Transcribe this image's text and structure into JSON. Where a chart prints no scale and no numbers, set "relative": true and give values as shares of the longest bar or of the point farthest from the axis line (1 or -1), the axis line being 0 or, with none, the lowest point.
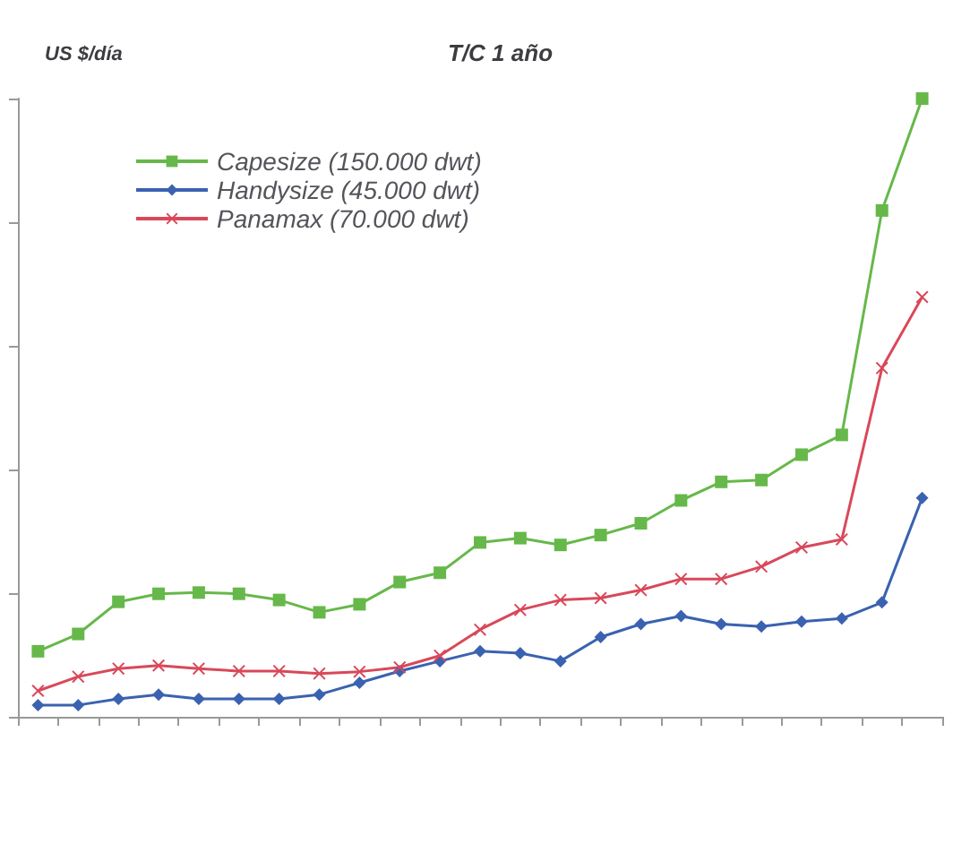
{
  "chart_data": {
    "type": "line",
    "title": "T/C 1 año",
    "ylabel": "US $/día",
    "relative": true,
    "grid": false,
    "legend": "top left",
    "categories": [
      null,
      null,
      null,
      null,
      null,
      null,
      null,
      null,
      null,
      null,
      null,
      null,
      null,
      null,
      null,
      null,
      null,
      null,
      null,
      null,
      null,
      null,
      null
    ],
    "series": [
      {
        "name": "Capesize (150.000 dwt)",
        "color": "#66b84a",
        "marker": "square",
        "values": [
          0.106,
          0.134,
          0.186,
          0.199,
          0.201,
          0.199,
          0.189,
          0.169,
          0.182,
          0.218,
          0.233,
          0.282,
          0.289,
          0.278,
          0.294,
          0.313,
          0.35,
          0.38,
          0.383,
          0.424,
          0.456,
          0.819,
          1
        ]
      },
      {
        "name": "Handysize (45.000 dwt)",
        "color": "#3a62b0",
        "marker": "diamond",
        "values": [
          0.019,
          0.019,
          0.029,
          0.036,
          0.029,
          0.029,
          0.029,
          0.036,
          0.055,
          0.074,
          0.09,
          0.106,
          0.103,
          0.09,
          0.129,
          0.15,
          0.163,
          0.15,
          0.146,
          0.154,
          0.159,
          0.185,
          0.354
        ]
      },
      {
        "name": "Panamax (70.000 dwt)",
        "color": "#d9485a",
        "marker": "cross",
        "values": [
          0.042,
          0.065,
          0.078,
          0.083,
          0.078,
          0.074,
          0.074,
          0.07,
          0.073,
          0.08,
          0.099,
          0.141,
          0.173,
          0.189,
          0.192,
          0.205,
          0.223,
          0.223,
          0.243,
          0.274,
          0.287,
          0.564,
          0.679
        ]
      }
    ]
  }
}
